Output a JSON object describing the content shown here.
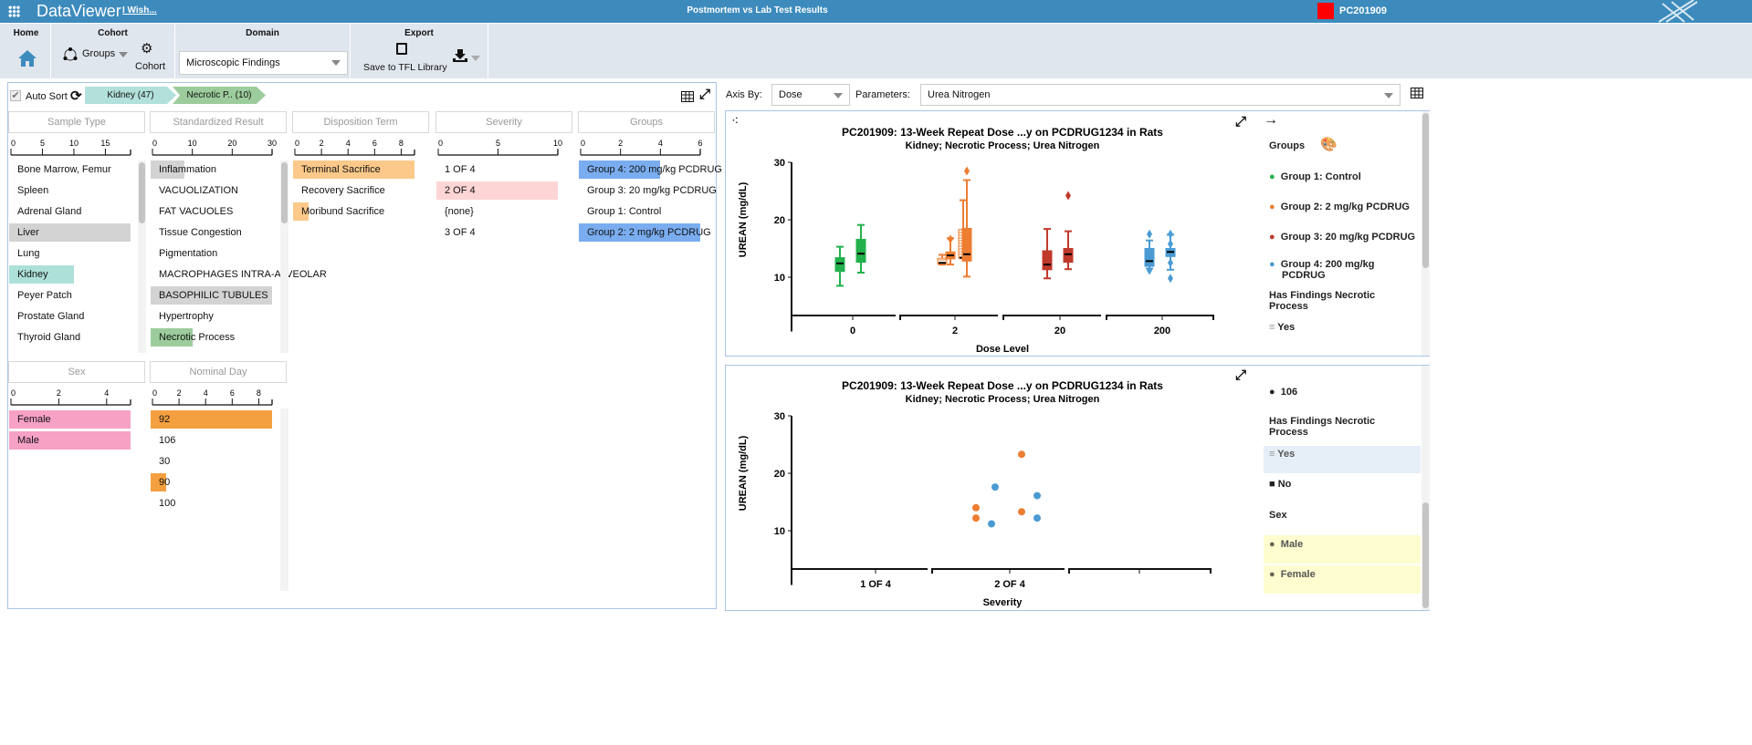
{
  "app": {
    "title": "DataViewer",
    "wish_link": "I Wish...",
    "page_title": "Postmortem vs Lab Test Results",
    "study_id": "PC201909",
    "study_color": "#ff0000"
  },
  "ribbon": {
    "home_label": "Home",
    "cohort_label": "Cohort",
    "groups_label": "Groups",
    "cohort_button": "Cohort",
    "domain_label": "Domain",
    "domain_value": "Microscopic Findings",
    "export_label": "Export",
    "save_tfl": "Save to TFL Library"
  },
  "filters": {
    "auto_sort": "Auto Sort",
    "auto_sort_checked": true,
    "breadcrumbs": [
      {
        "label": "Kidney (47)",
        "color": "#b2e0da"
      },
      {
        "label": "Necrotic P.. (10)",
        "color": "#9ccc9c"
      }
    ]
  },
  "facets": [
    {
      "title": "Sample Type",
      "axis_max": 19,
      "ticks": [
        0,
        5,
        10,
        15
      ],
      "items": [
        {
          "label": "Bone Marrow, Femur"
        },
        {
          "label": "Spleen"
        },
        {
          "label": "Adrenal Gland"
        },
        {
          "label": "Liver",
          "value": 19,
          "color": "#d3d3d3"
        },
        {
          "label": "Lung"
        },
        {
          "label": "Kidney",
          "value": 10,
          "color": "#aee0da"
        },
        {
          "label": "Peyer Patch"
        },
        {
          "label": "Prostate Gland"
        },
        {
          "label": "Thyroid Gland"
        }
      ]
    },
    {
      "title": "Standardized Result",
      "axis_max": 30,
      "ticks": [
        0,
        10,
        20,
        30
      ],
      "items": [
        {
          "label": "Inflammation",
          "value": 8,
          "color": "#d3d3d3"
        },
        {
          "label": "VACUOLIZATION"
        },
        {
          "label": "FAT VACUOLES"
        },
        {
          "label": "Tissue Congestion"
        },
        {
          "label": "Pigmentation"
        },
        {
          "label": "MACROPHAGES INTRA-ALVEOLAR"
        },
        {
          "label": "BASOPHILIC TUBULES",
          "value": 30,
          "color": "#d3d3d3"
        },
        {
          "label": "Hypertrophy"
        },
        {
          "label": "Necrotic Process",
          "value": 10,
          "color": "#9ccc9c"
        }
      ]
    },
    {
      "title": "Disposition Term",
      "axis_max": 9,
      "ticks": [
        0,
        2,
        4,
        6,
        8
      ],
      "items": [
        {
          "label": "Terminal Sacrifice",
          "value": 9,
          "color": "#fcc98a"
        },
        {
          "label": "Recovery Sacrifice"
        },
        {
          "label": "Moribund Sacrifice",
          "value": 1,
          "color": "#fcc98a"
        }
      ]
    },
    {
      "title": "Severity",
      "axis_max": 10,
      "ticks": [
        0,
        5,
        10
      ],
      "items": [
        {
          "label": "1 OF 4"
        },
        {
          "label": "2 OF 4",
          "value": 10,
          "color": "#fdd5d5"
        },
        {
          "label": "{none}"
        },
        {
          "label": "3 OF 4"
        }
      ]
    },
    {
      "title": "Groups",
      "axis_max": 6,
      "ticks": [
        0,
        2,
        4,
        6
      ],
      "items": [
        {
          "label": "Group 4: 200 mg/kg PCDRUG",
          "value": 4,
          "color": "#7aadf0"
        },
        {
          "label": "Group 3: 20 mg/kg PCDRUG"
        },
        {
          "label": "Group 1: Control"
        },
        {
          "label": "Group 2: 2 mg/kg PCDRUG",
          "value": 6,
          "color": "#7aadf0"
        }
      ]
    },
    {
      "title": "Sex",
      "axis_max": 5,
      "ticks": [
        0,
        2,
        4
      ],
      "items": [
        {
          "label": "Female",
          "value": 5,
          "color": "#f7a1c4"
        },
        {
          "label": "Male",
          "value": 5,
          "color": "#f7a1c4"
        }
      ]
    },
    {
      "title": "Nominal Day",
      "axis_max": 9,
      "ticks": [
        0,
        2,
        4,
        6,
        8
      ],
      "items": [
        {
          "label": "92",
          "value": 9,
          "color": "#f5a040"
        },
        {
          "label": "106"
        },
        {
          "label": "30"
        },
        {
          "label": "90",
          "value": 1,
          "color": "#f5a040"
        },
        {
          "label": "100"
        }
      ]
    }
  ],
  "controls": {
    "axis_by_label": "Axis By:",
    "axis_by_value": "Dose",
    "parameters_label": "Parameters:",
    "parameters_value": "Urea Nitrogen"
  },
  "group_colors": {
    "Group 1": "#22b14c",
    "Group 2": "#ed7d31",
    "Group 3": "#c0392b",
    "Group 4": "#4a9bd4"
  },
  "chart_data": [
    {
      "type": "box",
      "title": "PC201909: 13-Week Repeat Dose  ...y on PCDRUG1234 in Rats",
      "subtitle": "Kidney; Necrotic Process; Urea Nitrogen",
      "xlabel": "Dose Level",
      "ylabel": "UREAN (mg/dL)",
      "ylim": [
        5,
        30
      ],
      "yticks": [
        10,
        20,
        30
      ],
      "categories": [
        "0",
        "2",
        "20",
        "200"
      ],
      "boxes": [
        {
          "category": "0",
          "group": "Group 1",
          "hatched": false,
          "pos": "left",
          "min": 8.5,
          "q1": 11,
          "median": 12.4,
          "q3": 13.4,
          "max": 15.3,
          "outliers": []
        },
        {
          "category": "0",
          "group": "Group 1",
          "hatched": false,
          "pos": "right",
          "min": 10.8,
          "q1": 12.6,
          "median": 14.1,
          "q3": 16.6,
          "max": 19.1,
          "outliers": []
        },
        {
          "category": "2",
          "group": "Group 2",
          "hatched": true,
          "pos": "left",
          "min": 12.2,
          "q1": 12.3,
          "median": 12.5,
          "q3": 13.3,
          "max": 13.9,
          "outliers": []
        },
        {
          "category": "2",
          "group": "Group 2",
          "hatched": false,
          "pos": "left2",
          "min": 12.2,
          "q1": 13.2,
          "median": 13.8,
          "q3": 14.4,
          "max": 16.8,
          "outliers": [
            16.6
          ]
        },
        {
          "category": "2",
          "group": "Group 2",
          "hatched": true,
          "pos": "right",
          "min": 13.3,
          "q1": 13.3,
          "median": 13.4,
          "q3": 18.3,
          "max": 23.4,
          "outliers": []
        },
        {
          "category": "2",
          "group": "Group 2",
          "hatched": false,
          "pos": "right2",
          "min": 10.1,
          "q1": 12.8,
          "median": 14,
          "q3": 18.5,
          "max": 26.9,
          "outliers": [
            28.5
          ]
        },
        {
          "category": "20",
          "group": "Group 3",
          "hatched": false,
          "pos": "left",
          "min": 9.8,
          "q1": 11.3,
          "median": 12.2,
          "q3": 14.6,
          "max": 18.4,
          "outliers": []
        },
        {
          "category": "20",
          "group": "Group 3",
          "hatched": false,
          "pos": "right",
          "min": 11.4,
          "q1": 12.6,
          "median": 14,
          "q3": 15,
          "max": 18,
          "outliers": [
            24.2
          ]
        },
        {
          "category": "200",
          "group": "Group 4",
          "hatched": false,
          "pos": "left",
          "min": 11.5,
          "q1": 11.9,
          "median": 12.8,
          "q3": 15,
          "max": 16.4,
          "outliers": [
            17.5,
            11.2
          ]
        },
        {
          "category": "200",
          "group": "Group 4",
          "hatched": false,
          "pos": "right",
          "min": 11.3,
          "q1": 13.6,
          "median": 14.4,
          "q3": 15,
          "max": 17.4,
          "outliers": [
            17.5,
            15.8,
            12.5,
            9.8
          ]
        }
      ]
    },
    {
      "type": "scatter",
      "title": "PC201909: 13-Week Repeat Dose  ...y on PCDRUG1234 in Rats",
      "subtitle": "Kidney; Necrotic Process; Urea Nitrogen",
      "xlabel": "Severity",
      "ylabel": "UREAN (mg/dL)",
      "ylim": [
        5,
        30
      ],
      "yticks": [
        10,
        20,
        30
      ],
      "categories": [
        "1 OF 4",
        "2 OF 4",
        ""
      ],
      "points": [
        {
          "category": "2 OF 4",
          "group": "Group 2",
          "y": 14
        },
        {
          "category": "2 OF 4",
          "group": "Group 2",
          "y": 12.2
        },
        {
          "category": "2 OF 4",
          "group": "Group 2",
          "y": 23.3
        },
        {
          "category": "2 OF 4",
          "group": "Group 2",
          "y": 13.3
        },
        {
          "category": "2 OF 4",
          "group": "Group 4",
          "y": 11.2
        },
        {
          "category": "2 OF 4",
          "group": "Group 4",
          "y": 17.6
        },
        {
          "category": "2 OF 4",
          "group": "Group 4",
          "y": 16.1
        },
        {
          "category": "2 OF 4",
          "group": "Group 4",
          "y": 12.2
        }
      ]
    }
  ],
  "legend1": {
    "groups_title": "Groups",
    "items": [
      "Group 1: Control",
      "Group 2: 2 mg/kg PCDRUG",
      "Group 3: 20 mg/kg PCDRUG",
      "Group 4: 200 mg/kg PCDRUG"
    ],
    "findings_title": "Has Findings Necrotic Process",
    "yes": "Yes"
  },
  "legend2": {
    "day": "106",
    "findings_title": "Has Findings Necrotic Process",
    "yes": "Yes",
    "no": "No",
    "sex_title": "Sex",
    "male": "Male",
    "female": "Female"
  }
}
